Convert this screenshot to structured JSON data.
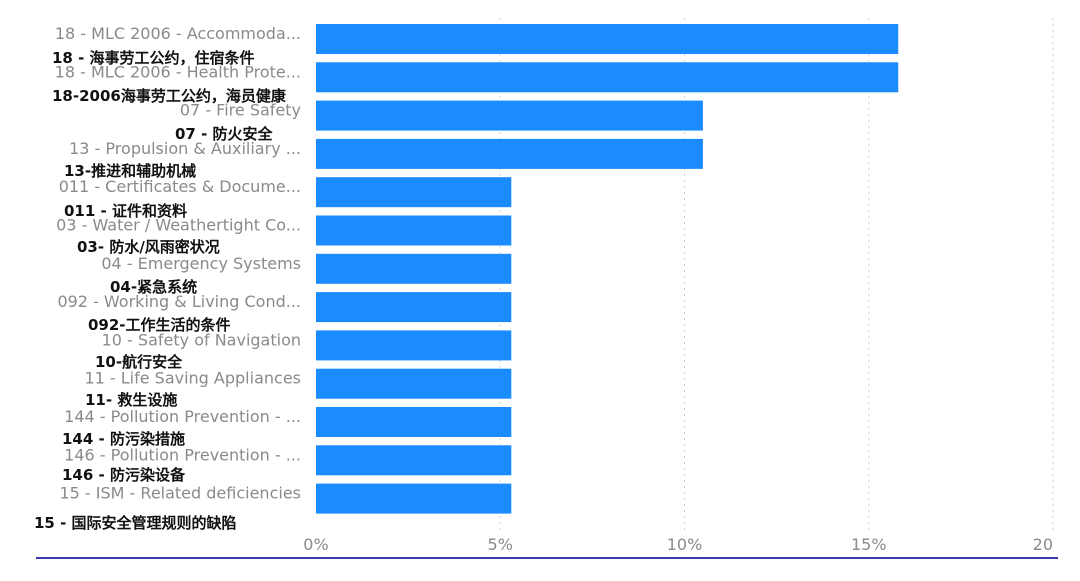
{
  "chart_data": {
    "type": "bar",
    "orientation": "horizontal",
    "categories": [
      "18 - MLC 2006 - Accommoda...",
      "18 - MLC 2006 - Health Prote...",
      "07 - Fire Safety",
      "13 - Propulsion & Auxiliary ...",
      "011 - Certificates & Docume...",
      "03 - Water / Weathertight Co...",
      "04 - Emergency Systems",
      "092 - Working & Living Cond...",
      "10 - Safety of Navigation",
      "11 - Life Saving Appliances",
      "144 - Pollution Prevention - ...",
      "146 - Pollution Prevention - ...",
      "15 - ISM - Related deficiencies"
    ],
    "annotations": [
      "18 - 海事劳工公约，住宿条件",
      "18-2006海事劳工公约，海员健康",
      "07  -  防火安全",
      "13-推进和辅助机械",
      "011 - 证件和资料",
      "03- 防水/风雨密状况",
      "04-紧急系统",
      "092-工作生活的条件",
      "10-航行安全",
      "11-  救生设施",
      "144 -   防污染措施",
      "146  -  防污染设备",
      "15 - 国际安全管理规则的缺陷"
    ],
    "values": [
      15.8,
      15.8,
      10.5,
      10.5,
      5.3,
      5.3,
      5.3,
      5.3,
      5.3,
      5.3,
      5.3,
      5.3,
      5.3
    ],
    "xlim": [
      0,
      20
    ],
    "xticks": [
      0,
      5,
      10,
      15,
      20
    ],
    "xtick_labels": [
      "0%",
      "5%",
      "10%",
      "15%",
      "20"
    ],
    "grid": true,
    "color": "#1a8cff"
  }
}
